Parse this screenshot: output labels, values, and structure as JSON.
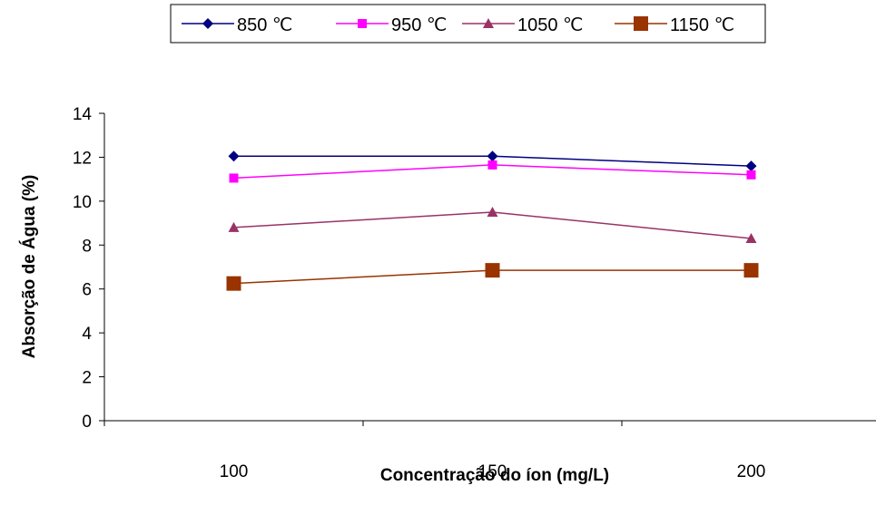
{
  "chart_data": {
    "type": "line",
    "title": "",
    "xlabel": "Concentração do íon (mg/L)",
    "ylabel": "Absorção de Água (%)",
    "categories": [
      "100",
      "150",
      "200"
    ],
    "ylim": [
      0,
      14
    ],
    "yticks": [
      "0",
      "2",
      "4",
      "6",
      "8",
      "10",
      "12",
      "14"
    ],
    "grid": false,
    "legend_position": "top",
    "series": [
      {
        "name": "850 ℃",
        "values": [
          12.05,
          12.05,
          11.6
        ],
        "color": "#000080",
        "marker": "diamond"
      },
      {
        "name": "950 ℃",
        "values": [
          11.05,
          11.65,
          11.2
        ],
        "color": "#ff00ff",
        "marker": "square"
      },
      {
        "name": "1050 ℃",
        "values": [
          8.8,
          9.5,
          8.3
        ],
        "color": "#993366",
        "marker": "triangle"
      },
      {
        "name": "1150 ℃",
        "values": [
          6.25,
          6.85,
          6.85
        ],
        "color": "#993300",
        "marker": "big-square"
      }
    ]
  }
}
